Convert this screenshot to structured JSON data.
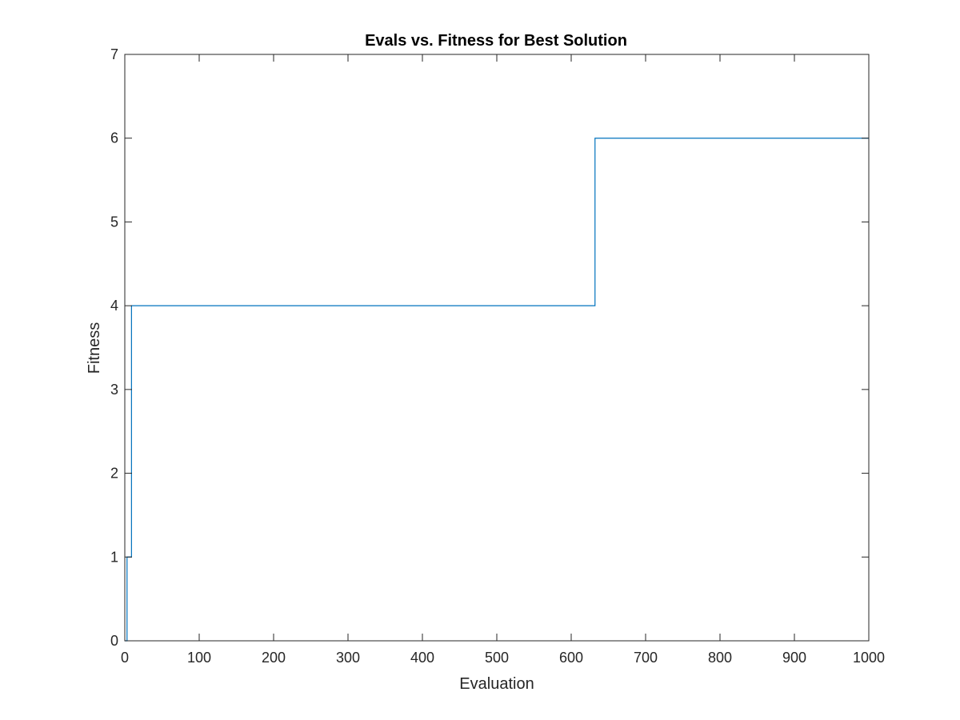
{
  "chart_data": {
    "type": "line",
    "title": "Evals vs. Fitness for Best Solution",
    "xlabel": "Evaluation",
    "ylabel": "Fitness",
    "xlim": [
      0,
      1000
    ],
    "ylim": [
      0,
      7
    ],
    "xticks": [
      0,
      100,
      200,
      300,
      400,
      500,
      600,
      700,
      800,
      900,
      1000
    ],
    "yticks": [
      0,
      1,
      2,
      3,
      4,
      5,
      6,
      7
    ],
    "grid": false,
    "step": true,
    "series": [
      {
        "color": "#0072BD",
        "x": [
          0,
          3,
          9,
          632,
          1000
        ],
        "y": [
          0,
          1,
          4,
          6,
          6
        ]
      }
    ]
  }
}
